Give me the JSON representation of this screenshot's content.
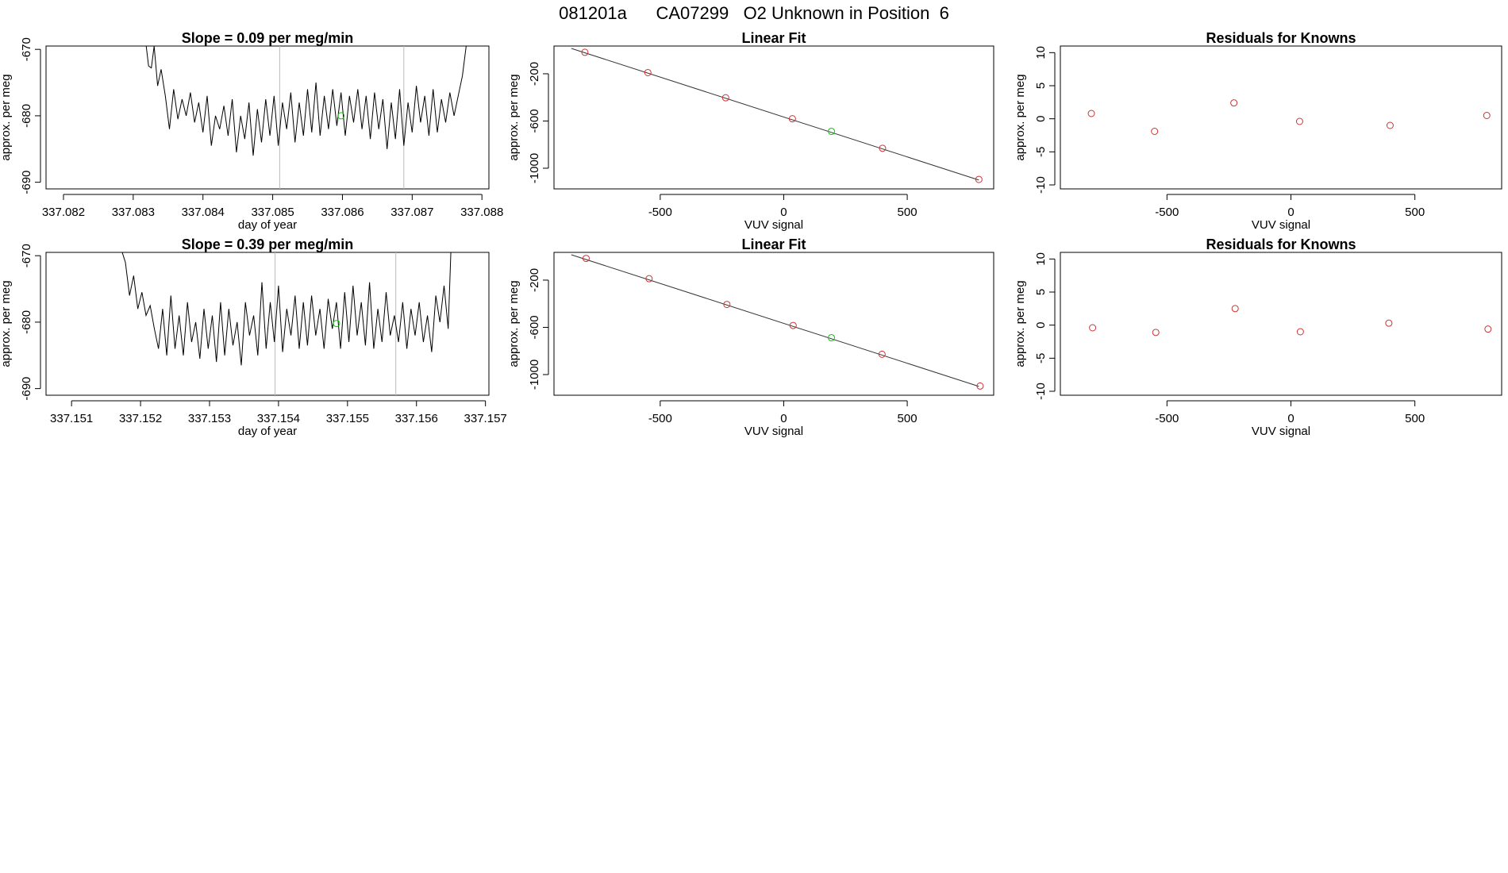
{
  "figure": {
    "main_title": "081201a      CA07299   O2 Unknown in Position  6"
  },
  "chart_data": [
    {
      "type": "line",
      "id": "ts1",
      "title": "Slope =  0.09  per meg/min",
      "xlabel": "day of year",
      "ylabel": "approx. per meg",
      "xlim": [
        337.08175,
        337.0881
      ],
      "ylim": [
        -691,
        -669.5
      ],
      "xticks": [
        337.082,
        337.083,
        337.084,
        337.085,
        337.086,
        337.087,
        337.088
      ],
      "xtick_labels": [
        "337.082",
        "337.083",
        "337.084",
        "337.085",
        "337.086",
        "337.087",
        "337.088"
      ],
      "yticks": [
        -690,
        -680,
        -670
      ],
      "ytick_labels": [
        "-690",
        "-680",
        "-670"
      ],
      "vlines": [
        337.0851,
        337.08688
      ],
      "series": [
        {
          "name": "signal",
          "color": "#000000",
          "x": [
            337.08318,
            337.08322,
            337.08326,
            337.0833,
            337.08335,
            337.0834,
            337.08346,
            337.08352,
            337.08358,
            337.08364,
            337.0837,
            337.08376,
            337.08382,
            337.08388,
            337.08394,
            337.084,
            337.08406,
            337.08412,
            337.08418,
            337.08424,
            337.0843,
            337.08436,
            337.08442,
            337.08448,
            337.08454,
            337.0846,
            337.08466,
            337.08472,
            337.08478,
            337.08484,
            337.0849,
            337.08496,
            337.08502,
            337.08508,
            337.08514,
            337.0852,
            337.08526,
            337.08532,
            337.08538,
            337.08544,
            337.0855,
            337.08556,
            337.08562,
            337.08568,
            337.08574,
            337.0858,
            337.08586,
            337.08592,
            337.08598,
            337.08604,
            337.0861,
            337.08616,
            337.08622,
            337.08628,
            337.08634,
            337.0864,
            337.08646,
            337.08652,
            337.08658,
            337.08664,
            337.0867,
            337.08676,
            337.08682,
            337.08688,
            337.08694,
            337.087,
            337.08706,
            337.08712,
            337.08718,
            337.08724,
            337.0873,
            337.08736,
            337.08742,
            337.08748,
            337.08754,
            337.0876,
            337.08766,
            337.08772,
            337.08778
          ],
          "y": [
            -669,
            -672.5,
            -672.8,
            -669.5,
            -675.5,
            -673,
            -677,
            -682,
            -676,
            -680.5,
            -677.5,
            -680,
            -676.5,
            -681,
            -678,
            -682.5,
            -677,
            -684.5,
            -680,
            -682,
            -678.5,
            -683,
            -677.5,
            -685.5,
            -680,
            -683.5,
            -678,
            -686,
            -679,
            -684,
            -677.5,
            -683,
            -677,
            -684.5,
            -678,
            -682,
            -676.5,
            -684,
            -678,
            -683,
            -676,
            -682.5,
            -675,
            -683,
            -677,
            -682,
            -676,
            -681.5,
            -676.5,
            -683,
            -677,
            -681,
            -676,
            -682,
            -677,
            -683.5,
            -676.5,
            -682,
            -677.5,
            -685,
            -678,
            -683.5,
            -676,
            -684.5,
            -678,
            -682.5,
            -675.5,
            -681,
            -677,
            -683,
            -676,
            -682.5,
            -677.5,
            -681,
            -676.5,
            -680,
            -677,
            -674,
            -669
          ]
        }
      ],
      "points": [
        {
          "x": 337.08598,
          "y": -680,
          "color": "#00cc00"
        }
      ]
    },
    {
      "type": "scatter",
      "id": "fit1",
      "title": "Linear Fit",
      "xlabel": "VUV signal",
      "ylabel": "approx. per meg",
      "xlim": [
        -930,
        850
      ],
      "ylim": [
        -1175,
        35
      ],
      "xticks": [
        -500,
        0,
        500
      ],
      "xtick_labels": [
        "-500",
        "0",
        "500"
      ],
      "yticks": [
        -1000,
        -600,
        -200
      ],
      "ytick_labels": [
        "-1000",
        "-600",
        "-200"
      ],
      "fit_line": {
        "x": [
          -860,
          790
        ],
        "y": [
          15,
          -1100
        ]
      },
      "series": [
        {
          "name": "knowns",
          "color": "#cc3333",
          "x": [
            -805,
            -550,
            -235,
            35,
            400,
            790
          ],
          "y": [
            -18,
            -190,
            -403,
            -581,
            -831,
            -1095
          ]
        },
        {
          "name": "unknown",
          "color": "#00cc00",
          "x": [
            193
          ],
          "y": [
            -688
          ]
        }
      ]
    },
    {
      "type": "scatter",
      "id": "res1",
      "title": "Residuals for Knowns",
      "xlabel": "VUV signal",
      "ylabel": "approx. per meg",
      "xlim": [
        -930,
        850
      ],
      "ylim": [
        -10.6,
        11
      ],
      "xticks": [
        -500,
        0,
        500
      ],
      "xtick_labels": [
        "-500",
        "0",
        "500"
      ],
      "yticks": [
        -10,
        -5,
        0,
        5,
        10
      ],
      "ytick_labels": [
        "-10",
        "-5",
        "0",
        "5",
        "10"
      ],
      "series": [
        {
          "name": "residuals",
          "color": "#cc3333",
          "x": [
            -805,
            -550,
            -230,
            35,
            400,
            790
          ],
          "y": [
            0.8,
            -1.9,
            2.4,
            -0.4,
            -1.0,
            0.5
          ]
        }
      ]
    },
    {
      "type": "line",
      "id": "ts2",
      "title": "Slope =  0.39  per meg/min",
      "xlabel": "day of year",
      "ylabel": "approx. per meg",
      "xlim": [
        337.15063,
        337.15705
      ],
      "ylim": [
        -691,
        -669.5
      ],
      "xticks": [
        337.151,
        337.152,
        337.153,
        337.154,
        337.155,
        337.156,
        337.157
      ],
      "xtick_labels": [
        "337.151",
        "337.152",
        "337.153",
        "337.154",
        "337.155",
        "337.156",
        "337.157"
      ],
      "yticks": [
        -690,
        -680,
        -670
      ],
      "ytick_labels": [
        "-690",
        "-680",
        "-670"
      ],
      "vlines": [
        337.15395,
        337.1557
      ],
      "series": [
        {
          "name": "signal",
          "color": "#000000",
          "x": [
            337.15172,
            337.15178,
            337.15184,
            337.1519,
            337.15196,
            337.15202,
            337.15208,
            337.15214,
            337.1522,
            337.15226,
            337.15232,
            337.15238,
            337.15244,
            337.1525,
            337.15256,
            337.15262,
            337.15268,
            337.15274,
            337.1528,
            337.15286,
            337.15292,
            337.15298,
            337.15304,
            337.1531,
            337.15316,
            337.15322,
            337.15328,
            337.15334,
            337.1534,
            337.15346,
            337.15352,
            337.15358,
            337.15364,
            337.1537,
            337.15376,
            337.15382,
            337.15388,
            337.15394,
            337.154,
            337.15406,
            337.15412,
            337.15418,
            337.15424,
            337.1543,
            337.15436,
            337.15442,
            337.15448,
            337.15454,
            337.1546,
            337.15466,
            337.15472,
            337.15478,
            337.15484,
            337.1549,
            337.15496,
            337.15502,
            337.15508,
            337.15514,
            337.1552,
            337.15526,
            337.15532,
            337.15538,
            337.15544,
            337.1555,
            337.15556,
            337.15562,
            337.15568,
            337.15574,
            337.1558,
            337.15586,
            337.15592,
            337.15598,
            337.15604,
            337.1561,
            337.15616,
            337.15622,
            337.15628,
            337.15634,
            337.1564,
            337.15646,
            337.1565
          ],
          "y": [
            -669,
            -671,
            -676,
            -673,
            -678,
            -675.5,
            -679,
            -677.5,
            -681,
            -684,
            -678,
            -685,
            -676,
            -684,
            -679,
            -685,
            -677,
            -683,
            -680,
            -685.5,
            -678,
            -684,
            -679,
            -686,
            -677,
            -685,
            -678,
            -683.5,
            -680,
            -686.5,
            -677,
            -682,
            -679,
            -685,
            -674,
            -684,
            -677,
            -683,
            -674.5,
            -684.5,
            -678,
            -682,
            -676,
            -684,
            -677,
            -683.5,
            -676,
            -682,
            -678,
            -684,
            -676.5,
            -681,
            -677,
            -684,
            -675.5,
            -683,
            -674.5,
            -682,
            -677,
            -683.5,
            -674,
            -684,
            -678,
            -683,
            -675.5,
            -682,
            -679,
            -683,
            -677,
            -684,
            -678,
            -682,
            -677,
            -683,
            -679,
            -684.5,
            -676,
            -680,
            -674.5,
            -681,
            -669
          ]
        }
      ],
      "points": [
        {
          "x": 337.15484,
          "y": -680.2,
          "color": "#00cc00"
        }
      ]
    },
    {
      "type": "scatter",
      "id": "fit2",
      "title": "Linear Fit",
      "xlabel": "VUV signal",
      "ylabel": "approx. per meg",
      "xlim": [
        -930,
        850
      ],
      "ylim": [
        -1175,
        35
      ],
      "xticks": [
        -500,
        0,
        500
      ],
      "xtick_labels": [
        "-500",
        "0",
        "500"
      ],
      "yticks": [
        -1000,
        -600,
        -200
      ],
      "ytick_labels": [
        "-1000",
        "-600",
        "-200"
      ],
      "fit_line": {
        "x": [
          -860,
          790
        ],
        "y": [
          15,
          -1100
        ]
      },
      "series": [
        {
          "name": "knowns",
          "color": "#cc3333",
          "x": [
            -800,
            -545,
            -230,
            38,
            398,
            795
          ],
          "y": [
            -16,
            -188,
            -406,
            -584,
            -828,
            -1097
          ]
        },
        {
          "name": "unknown",
          "color": "#00cc00",
          "x": [
            193
          ],
          "y": [
            -688
          ]
        }
      ]
    },
    {
      "type": "scatter",
      "id": "res2",
      "title": "Residuals for Knowns",
      "xlabel": "VUV signal",
      "ylabel": "approx. per meg",
      "xlim": [
        -930,
        850
      ],
      "ylim": [
        -10.6,
        11
      ],
      "xticks": [
        -500,
        0,
        500
      ],
      "xtick_labels": [
        "-500",
        "0",
        "500"
      ],
      "yticks": [
        -10,
        -5,
        0,
        5,
        10
      ],
      "ytick_labels": [
        "-10",
        "-5",
        "0",
        "5",
        "10"
      ],
      "series": [
        {
          "name": "residuals",
          "color": "#cc3333",
          "x": [
            -800,
            -545,
            -225,
            38,
            395,
            795
          ],
          "y": [
            -0.4,
            -1.1,
            2.5,
            -1.0,
            0.3,
            -0.6
          ]
        }
      ]
    }
  ]
}
